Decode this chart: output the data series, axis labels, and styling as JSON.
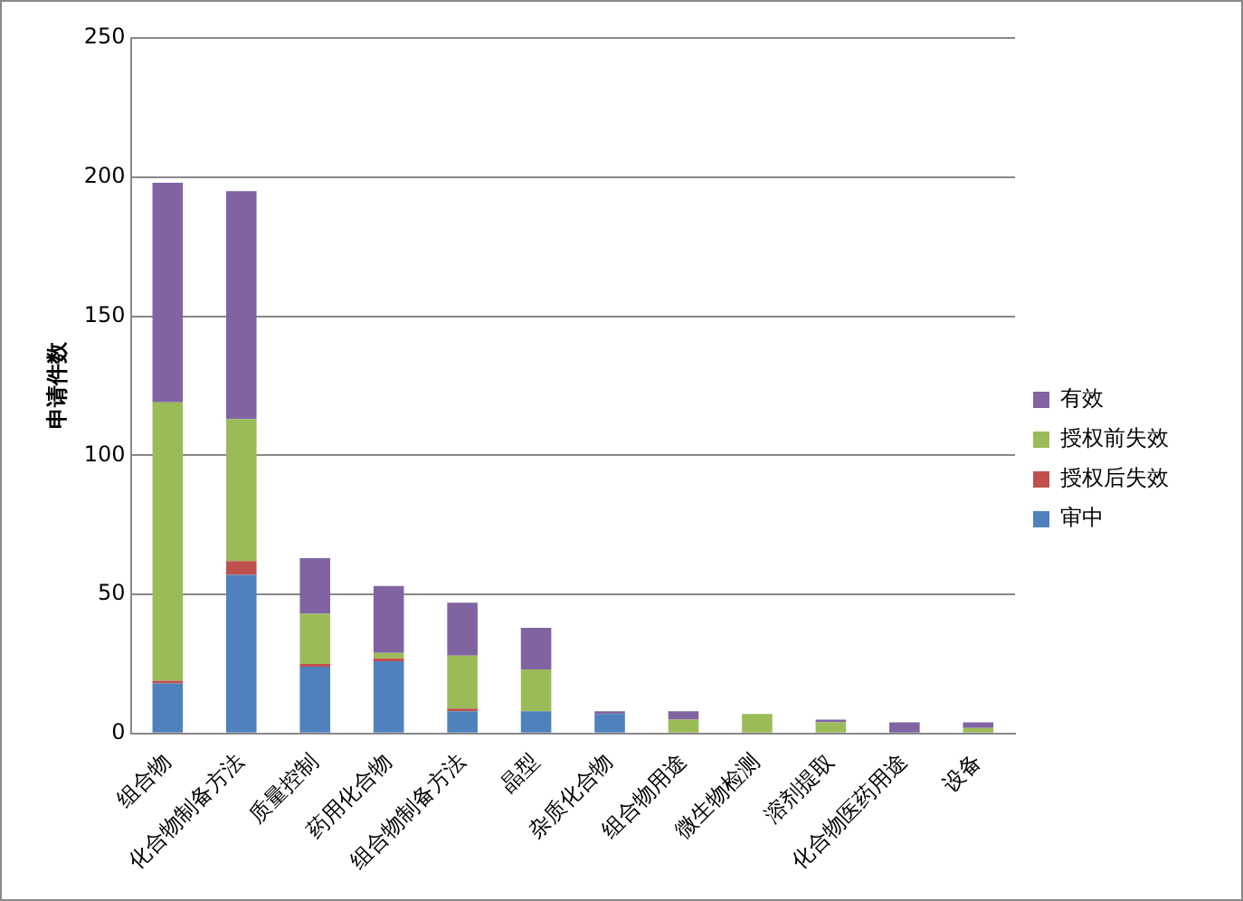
{
  "chart_data": {
    "type": "bar",
    "stacked": true,
    "ylabel": "申请件数",
    "categories": [
      "组合物",
      "化合物制备方法",
      "质量控制",
      "药用化合物",
      "组合物制备方法",
      "晶型",
      "杂质化合物",
      "组合物用途",
      "微生物检测",
      "溶剂提取",
      "化合物医药用途",
      "设备"
    ],
    "series": [
      {
        "name": "审中",
        "color": "#4f81bd",
        "values": [
          18,
          57,
          24,
          26,
          8,
          8,
          7,
          0,
          0,
          0,
          0,
          0
        ]
      },
      {
        "name": "授权后失效",
        "color": "#c0504d",
        "values": [
          1,
          5,
          1,
          1,
          1,
          0,
          0,
          0,
          0,
          0,
          0,
          0
        ]
      },
      {
        "name": "授权前失效",
        "color": "#9bbb59",
        "values": [
          100,
          51,
          18,
          2,
          19,
          15,
          0,
          5,
          7,
          4,
          0,
          2
        ]
      },
      {
        "name": "有效",
        "color": "#8064a2",
        "values": [
          79,
          82,
          20,
          24,
          19,
          15,
          1,
          3,
          0,
          1,
          4,
          2
        ]
      }
    ],
    "ylim": [
      0,
      250
    ],
    "yticks": [
      0,
      50,
      100,
      150,
      200,
      250
    ],
    "grid": "y",
    "legend": "right"
  }
}
